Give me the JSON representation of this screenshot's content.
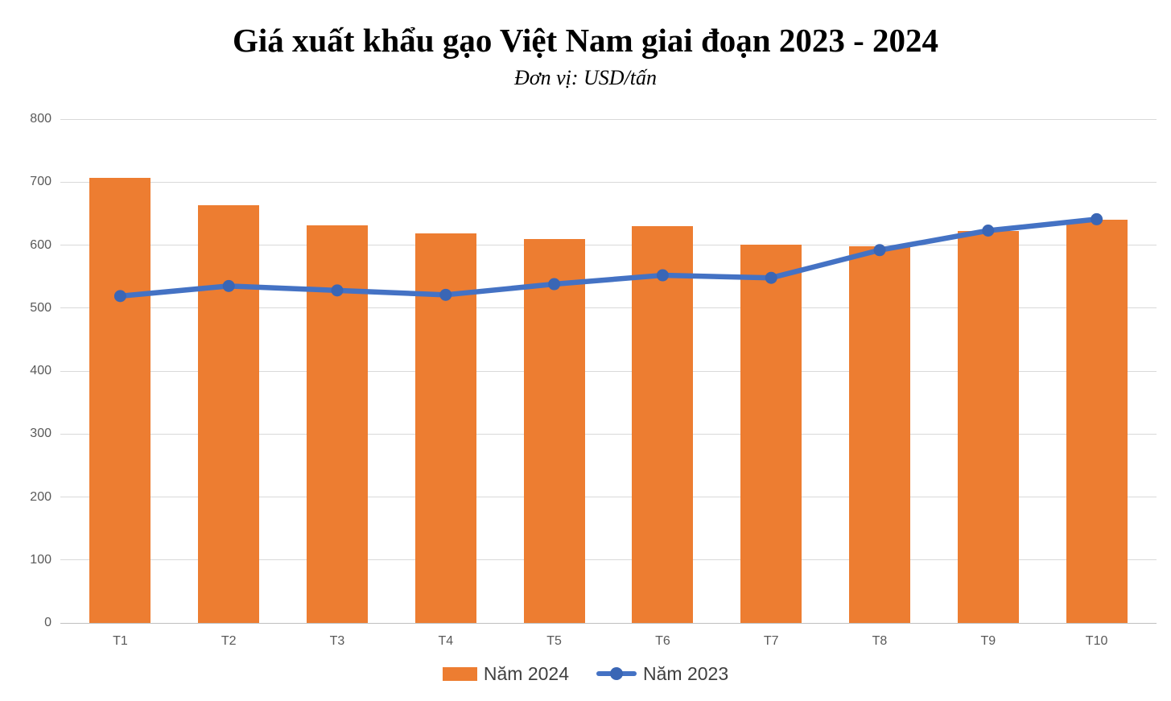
{
  "title": "Giá xuất khẩu gạo Việt Nam giai đoạn 2023 - 2024",
  "subtitle": "Đơn vị: USD/tấn",
  "colors": {
    "bar_2024": "#ED7D31",
    "line_2023": "#4472C4",
    "gridline": "#D9D9D9",
    "axis_text": "#595959",
    "legend_text": "#404040",
    "title_text": "#000000"
  },
  "legend": {
    "items": [
      {
        "label": "Năm 2024",
        "marker": "orange-bar-swatch"
      },
      {
        "label": "Năm 2023",
        "marker": "blue-line-dot-swatch"
      }
    ]
  },
  "chart_data": {
    "type": "bar",
    "subtype": "combo-bar-line",
    "title": "Giá xuất khẩu gạo Việt Nam giai đoạn 2023 - 2024",
    "unit_label": "Đơn vị: USD/tấn",
    "xlabel": "",
    "ylabel": "",
    "categories": [
      "T1",
      "T2",
      "T3",
      "T4",
      "T5",
      "T6",
      "T7",
      "T8",
      "T9",
      "T10"
    ],
    "series": [
      {
        "name": "Năm 2024",
        "type": "bar",
        "color": "#ED7D31",
        "values": [
          707,
          663,
          631,
          618,
          609,
          630,
          601,
          598,
          623,
          640
        ]
      },
      {
        "name": "Năm 2023",
        "type": "line",
        "color": "#4472C4",
        "values": [
          519,
          535,
          528,
          521,
          538,
          552,
          548,
          592,
          623,
          641
        ]
      }
    ],
    "ylim": [
      0,
      800
    ],
    "y_ticks": [
      0,
      100,
      200,
      300,
      400,
      500,
      600,
      700,
      800
    ],
    "grid": true,
    "legend_position": "bottom"
  }
}
